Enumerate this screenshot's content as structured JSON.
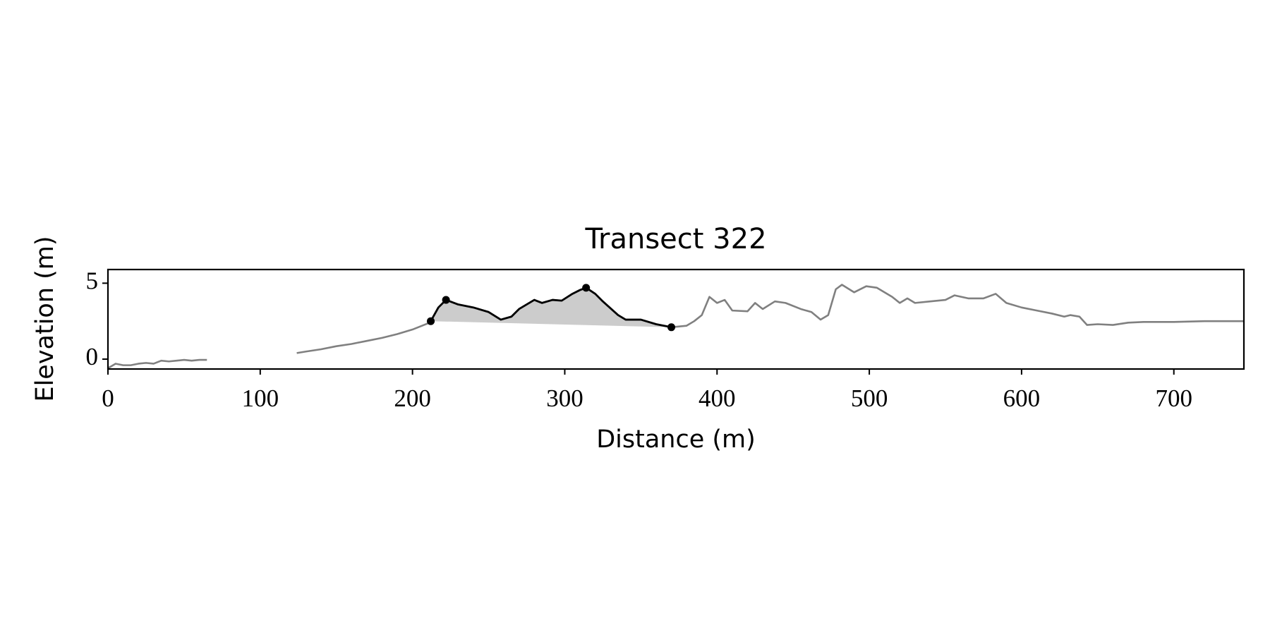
{
  "chart_data": {
    "type": "line",
    "title": "Transect 322",
    "xlabel": "Distance (m)",
    "ylabel": "Elevation (m)",
    "xlim": [
      0,
      746
    ],
    "ylim": [
      -0.65,
      5.9
    ],
    "xticks": [
      0,
      100,
      200,
      300,
      400,
      500,
      600,
      700
    ],
    "yticks": [
      0,
      5
    ],
    "series": [
      {
        "color": "#808080",
        "x": [
          0,
          5,
          10,
          15,
          20,
          25,
          30,
          35,
          40,
          45,
          50,
          55,
          60,
          65,
          70,
          124,
          130,
          140,
          150,
          160,
          170,
          180,
          190,
          200,
          210,
          212,
          217,
          222,
          230,
          240,
          250,
          258,
          265,
          270,
          280,
          285,
          292,
          298,
          305,
          310,
          314,
          320,
          325,
          335,
          340,
          350,
          360,
          370,
          380,
          385,
          390,
          395,
          400,
          405,
          410,
          420,
          425,
          430,
          438,
          445,
          455,
          462,
          468,
          473,
          478,
          482,
          490,
          498,
          505,
          515,
          520,
          525,
          530,
          540,
          550,
          556,
          565,
          575,
          583,
          590,
          600,
          610,
          620,
          628,
          632,
          638,
          643,
          650,
          660,
          670,
          680,
          700,
          720,
          746
        ],
        "values": [
          -0.6,
          -0.3,
          -0.4,
          -0.4,
          -0.3,
          -0.25,
          -0.3,
          -0.1,
          -0.15,
          -0.1,
          -0.05,
          -0.1,
          -0.05,
          -0.05,
          null,
          0.4,
          0.5,
          0.65,
          0.85,
          1.0,
          1.2,
          1.4,
          1.65,
          1.95,
          2.35,
          2.5,
          3.4,
          3.9,
          3.6,
          3.4,
          3.1,
          2.6,
          2.8,
          3.3,
          3.9,
          3.7,
          3.9,
          3.85,
          4.3,
          4.55,
          4.7,
          4.3,
          3.8,
          2.9,
          2.6,
          2.6,
          2.3,
          2.1,
          2.2,
          2.5,
          2.9,
          4.1,
          3.7,
          3.9,
          3.2,
          3.15,
          3.7,
          3.3,
          3.8,
          3.7,
          3.3,
          3.1,
          2.6,
          2.9,
          4.6,
          4.9,
          4.4,
          4.8,
          4.7,
          4.1,
          3.7,
          4.0,
          3.7,
          3.8,
          3.9,
          4.2,
          4.0,
          4.0,
          4.3,
          3.7,
          3.4,
          3.2,
          3.0,
          2.8,
          2.9,
          2.8,
          2.25,
          2.3,
          2.25,
          2.4,
          2.45,
          2.45,
          2.5,
          2.5
        ]
      },
      {
        "color": "#000000",
        "fill": "#cccccc",
        "x": [
          212,
          217,
          222,
          230,
          240,
          250,
          258,
          265,
          270,
          280,
          285,
          292,
          298,
          305,
          310,
          314,
          320,
          325,
          335,
          340,
          350,
          360,
          370
        ],
        "values": [
          2.5,
          3.4,
          3.9,
          3.6,
          3.4,
          3.1,
          2.6,
          2.8,
          3.3,
          3.9,
          3.7,
          3.9,
          3.85,
          4.3,
          4.55,
          4.7,
          4.3,
          3.8,
          2.9,
          2.6,
          2.6,
          2.3,
          2.1
        ]
      },
      {
        "color": "#000000",
        "marker": true,
        "x": [
          212,
          222,
          314,
          370
        ],
        "values": [
          2.5,
          3.9,
          4.7,
          2.1
        ]
      }
    ]
  }
}
